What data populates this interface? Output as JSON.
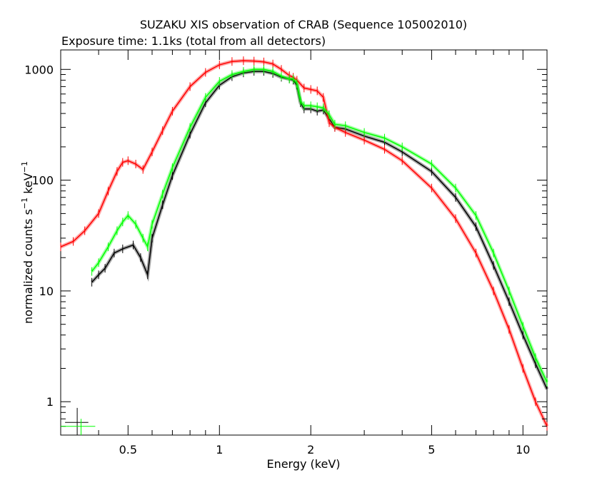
{
  "chart_data": {
    "type": "line",
    "title": "SUZAKU XIS observation of CRAB (Sequence 105002010)",
    "subtitle": "Exposure time: 1.1ks (total from all detectors)",
    "xlabel": "Energy (keV)",
    "ylabel_main": "normalized counts s",
    "ylabel_sup1": "−1",
    "ylabel_mid": " keV",
    "ylabel_sup2": "−1",
    "xscale": "log",
    "yscale": "log",
    "xlim": [
      0.3,
      12
    ],
    "ylim": [
      0.5,
      1500
    ],
    "grid": false,
    "legend": "none",
    "x_ticks": [
      {
        "value": 0.5,
        "label": "0.5"
      },
      {
        "value": 1,
        "label": "1"
      },
      {
        "value": 2,
        "label": "2"
      },
      {
        "value": 5,
        "label": "5"
      },
      {
        "value": 10,
        "label": "10"
      }
    ],
    "y_ticks": [
      {
        "value": 1,
        "label": "1"
      },
      {
        "value": 10,
        "label": "10"
      },
      {
        "value": 100,
        "label": "100"
      },
      {
        "value": 1000,
        "label": "1000"
      }
    ],
    "series": [
      {
        "color": "#000000",
        "x": [
          0.38,
          0.4,
          0.42,
          0.45,
          0.48,
          0.52,
          0.55,
          0.58,
          0.6,
          0.65,
          0.7,
          0.8,
          0.9,
          1.0,
          1.1,
          1.2,
          1.3,
          1.4,
          1.5,
          1.6,
          1.7,
          1.75,
          1.8,
          1.85,
          1.9,
          2.0,
          2.1,
          2.2,
          2.3,
          2.4,
          2.6,
          3.0,
          3.5,
          4.0,
          5.0,
          6.0,
          7.0,
          8.0,
          9.0,
          10.0,
          11.0,
          12.0
        ],
        "y": [
          12,
          14,
          16,
          22,
          24,
          26,
          20,
          14,
          30,
          60,
          110,
          260,
          500,
          720,
          860,
          930,
          960,
          960,
          920,
          850,
          820,
          800,
          720,
          500,
          440,
          440,
          420,
          430,
          360,
          300,
          290,
          250,
          220,
          180,
          120,
          70,
          38,
          17,
          8,
          4,
          2.2,
          1.3
        ]
      },
      {
        "color": "#ff0000",
        "x": [
          0.3,
          0.33,
          0.36,
          0.4,
          0.43,
          0.46,
          0.48,
          0.5,
          0.53,
          0.56,
          0.6,
          0.65,
          0.7,
          0.8,
          0.9,
          1.0,
          1.1,
          1.2,
          1.3,
          1.4,
          1.5,
          1.6,
          1.7,
          1.75,
          1.8,
          1.9,
          2.0,
          2.1,
          2.2,
          2.3,
          2.4,
          2.6,
          3.0,
          3.5,
          4.0,
          5.0,
          6.0,
          7.0,
          8.0,
          9.0,
          10.0,
          11.0,
          12.0
        ],
        "y": [
          25,
          28,
          35,
          50,
          80,
          120,
          145,
          150,
          140,
          125,
          180,
          280,
          420,
          700,
          940,
          1100,
          1180,
          1200,
          1190,
          1170,
          1120,
          1000,
          880,
          850,
          800,
          680,
          660,
          640,
          560,
          330,
          300,
          270,
          230,
          190,
          150,
          85,
          45,
          22,
          10,
          4.5,
          2,
          1,
          0.6
        ]
      },
      {
        "color": "#00ff00",
        "x": [
          0.38,
          0.4,
          0.43,
          0.46,
          0.48,
          0.5,
          0.53,
          0.56,
          0.58,
          0.6,
          0.65,
          0.7,
          0.8,
          0.9,
          1.0,
          1.1,
          1.2,
          1.3,
          1.4,
          1.5,
          1.6,
          1.7,
          1.75,
          1.8,
          1.85,
          1.9,
          2.0,
          2.1,
          2.2,
          2.3,
          2.4,
          2.6,
          3.0,
          3.5,
          4.0,
          5.0,
          6.0,
          7.0,
          8.0,
          9.0,
          10.0,
          11.0,
          12.0
        ],
        "y": [
          15,
          18,
          25,
          35,
          42,
          48,
          40,
          30,
          25,
          40,
          75,
          130,
          300,
          560,
          780,
          900,
          960,
          1000,
          1000,
          960,
          870,
          820,
          820,
          750,
          520,
          470,
          470,
          460,
          450,
          390,
          320,
          310,
          270,
          240,
          200,
          140,
          85,
          48,
          22,
          10,
          4.8,
          2.5,
          1.5
        ]
      }
    ],
    "corner_markers": [
      {
        "color": "#000000",
        "x": 0.34,
        "y": 0.65,
        "xerr": [
          0.31,
          0.37
        ],
        "yerr": [
          0.5,
          0.88
        ]
      },
      {
        "color": "#00ff00",
        "x": 0.35,
        "y": 0.6,
        "xerr": [
          0.3,
          0.39
        ],
        "yerr": [
          0.5,
          0.7
        ]
      }
    ]
  }
}
